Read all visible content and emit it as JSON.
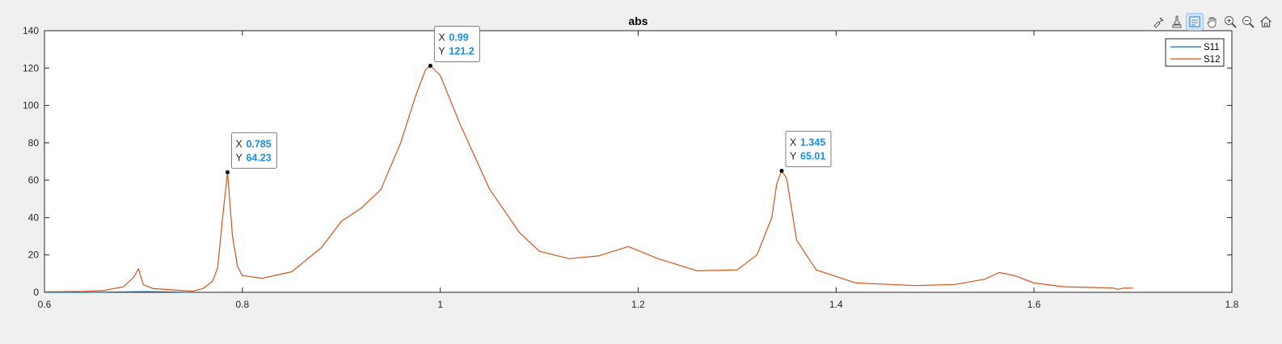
{
  "toolbar": {
    "icons": [
      "brush-data-icon",
      "data-cursor-icon",
      "datatip-icon",
      "pan-hand-icon",
      "zoom-in-icon",
      "zoom-out-icon",
      "home-icon"
    ],
    "active": "datatip-icon"
  },
  "chart_data": {
    "type": "line",
    "title": "abs",
    "xlabel": "",
    "ylabel": "",
    "xlim": [
      0.6,
      1.8
    ],
    "ylim": [
      0,
      140
    ],
    "xticks": [
      "0.6",
      "0.8",
      "1",
      "1.2",
      "1.4",
      "1.6",
      "1.8"
    ],
    "yticks": [
      "0",
      "20",
      "40",
      "60",
      "80",
      "100",
      "120",
      "140"
    ],
    "xtick_values": [
      0.6,
      0.8,
      1.0,
      1.2,
      1.4,
      1.6,
      1.8
    ],
    "ytick_values": [
      0,
      20,
      40,
      60,
      80,
      100,
      120,
      140
    ],
    "grid": false,
    "legend": {
      "placement": "top-right",
      "entries": [
        "S11",
        "S12"
      ]
    },
    "series": [
      {
        "name": "S11",
        "color": "#0072BD",
        "x": [
          0.6,
          0.64,
          0.68,
          0.7,
          0.72,
          0.74,
          0.75
        ],
        "y": [
          0,
          0,
          0.2,
          0.4,
          0.3,
          0.1,
          0
        ]
      },
      {
        "name": "S12",
        "color": "#D95319",
        "x": [
          0.6,
          0.64,
          0.66,
          0.68,
          0.69,
          0.695,
          0.7,
          0.71,
          0.73,
          0.75,
          0.76,
          0.77,
          0.775,
          0.78,
          0.785,
          0.79,
          0.795,
          0.8,
          0.82,
          0.85,
          0.88,
          0.9,
          0.92,
          0.94,
          0.96,
          0.975,
          0.985,
          0.99,
          1.0,
          1.02,
          1.05,
          1.08,
          1.1,
          1.13,
          1.16,
          1.19,
          1.22,
          1.26,
          1.3,
          1.32,
          1.335,
          1.34,
          1.345,
          1.35,
          1.355,
          1.36,
          1.38,
          1.42,
          1.48,
          1.52,
          1.55,
          1.565,
          1.58,
          1.6,
          1.63,
          1.66,
          1.68,
          1.685,
          1.69,
          1.7
        ],
        "y": [
          0.3,
          0.5,
          1.0,
          3.0,
          8.0,
          12.6,
          4.0,
          2.0,
          1.3,
          0.6,
          2.0,
          6.0,
          13.0,
          40.0,
          64.23,
          30.0,
          14.0,
          9.0,
          7.5,
          11.0,
          24.0,
          38.0,
          45.0,
          55.0,
          80.0,
          105.0,
          119.0,
          121.2,
          116.0,
          90.0,
          55.0,
          32.0,
          22.0,
          18.0,
          19.5,
          24.5,
          18.0,
          11.5,
          12.0,
          20.0,
          40.0,
          58.0,
          65.01,
          61.0,
          45.0,
          28.0,
          12.0,
          5.0,
          3.6,
          4.2,
          7.0,
          10.6,
          9.0,
          5.0,
          3.0,
          2.6,
          2.3,
          1.6,
          2.2,
          2.3
        ]
      }
    ],
    "datatips": [
      {
        "x": 0.785,
        "y": 64.23,
        "x_label": "0.785",
        "y_label": "64.23"
      },
      {
        "x": 0.99,
        "y": 121.2,
        "x_label": "0.99",
        "y_label": "121.2"
      },
      {
        "x": 1.345,
        "y": 65.01,
        "x_label": "1.345",
        "y_label": "65.01"
      }
    ]
  }
}
